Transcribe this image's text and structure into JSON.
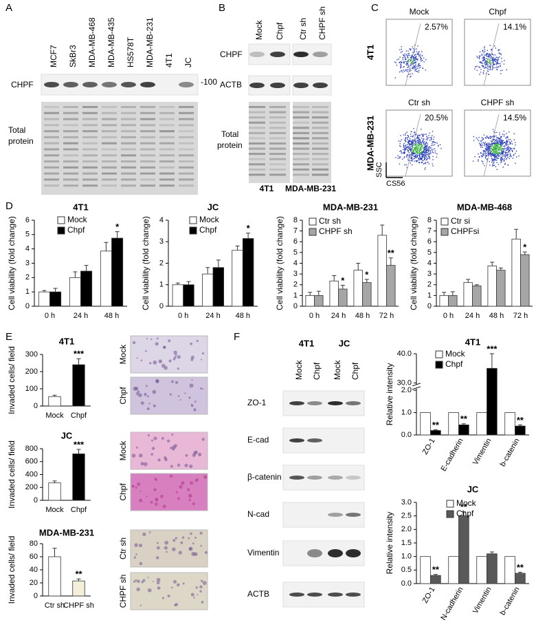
{
  "panels": [
    "A",
    "B",
    "C",
    "D",
    "E",
    "F"
  ],
  "panel_a": {
    "lanes": [
      "MCF7",
      "SkBr3",
      "MDA-MB-468",
      "MDA-MB-435",
      "HS578T",
      "MDA-MB-231",
      "4T1",
      "JC"
    ],
    "protein": "CHPF",
    "marker": "-100",
    "total": [
      "Total",
      "protein"
    ]
  },
  "panel_b": {
    "lanes": [
      "Mock",
      "Chpf",
      "Ctr sh",
      "CHPF sh"
    ],
    "rows": [
      "CHPF",
      "ACTB"
    ],
    "total": [
      "Total",
      "protein"
    ],
    "cells": [
      "4T1",
      "MDA-MB-231"
    ]
  },
  "panel_c": {
    "plots": [
      {
        "title": "Mock",
        "pct": "2.57%"
      },
      {
        "title": "Chpf",
        "pct": "14.1%"
      },
      {
        "title": "Ctr sh",
        "pct": "20.5%"
      },
      {
        "title": "CHPF sh",
        "pct": "14.5%"
      }
    ],
    "rows": [
      "4T1",
      "MDA-MB-231"
    ],
    "axes": [
      "SSC",
      "CS56"
    ]
  },
  "panel_e": {
    "images": [
      "Mock",
      "Chpf",
      "Mock",
      "Chpf",
      "Ctr sh",
      "CHPF sh"
    ]
  },
  "panel_f": {
    "cells": [
      "4T1",
      "JC"
    ],
    "lanes": [
      "Mock",
      "Chpf",
      "Mock",
      "Chpf"
    ],
    "rows": [
      "ZO-1",
      "E-cad",
      "β-catenin",
      "N-cad",
      "Vimentin",
      "ACTB"
    ]
  },
  "chart_data": [
    {
      "type": "bar",
      "title": "4T1",
      "y_label": "Cell viability (fold change)",
      "categories": [
        "0 h",
        "24 h",
        "48 h"
      ],
      "ylim": [
        0,
        6
      ],
      "yticks": [
        0,
        1,
        2,
        3,
        4,
        5,
        6
      ],
      "series": [
        {
          "name": "Mock",
          "color": "#ffffff",
          "values": [
            1.0,
            2.0,
            3.85
          ],
          "errors": [
            0.1,
            0.4,
            0.6
          ],
          "significance": [
            null,
            null,
            null
          ]
        },
        {
          "name": "Chpf",
          "color": "#000000",
          "values": [
            1.0,
            2.45,
            4.75
          ],
          "errors": [
            0.25,
            0.4,
            0.45
          ],
          "significance": [
            null,
            null,
            "*"
          ]
        }
      ]
    },
    {
      "type": "bar",
      "title": "JC",
      "y_label": "Cell viability (fold change)",
      "categories": [
        "0 h",
        "24 h",
        "48 h"
      ],
      "ylim": [
        0,
        4
      ],
      "yticks": [
        0,
        1,
        2,
        3,
        4
      ],
      "series": [
        {
          "name": "Mock",
          "color": "#ffffff",
          "values": [
            1.0,
            1.5,
            2.6
          ],
          "errors": [
            0.08,
            0.3,
            0.2
          ],
          "significance": [
            null,
            null,
            null
          ]
        },
        {
          "name": "Chpf",
          "color": "#000000",
          "values": [
            1.0,
            1.8,
            3.15
          ],
          "errors": [
            0.15,
            0.35,
            0.25
          ],
          "significance": [
            null,
            null,
            "*"
          ]
        }
      ]
    },
    {
      "type": "bar",
      "title": "MDA-MB-231",
      "y_label": "Cell viability (fold change)",
      "categories": [
        "0 h",
        "24 h",
        "48 h",
        "72 h"
      ],
      "ylim": [
        0,
        8
      ],
      "yticks": [
        0,
        1,
        2,
        3,
        4,
        5,
        6,
        7,
        8
      ],
      "series": [
        {
          "name": "Ctr sh",
          "color": "#ffffff",
          "values": [
            1.0,
            2.35,
            3.35,
            6.6
          ],
          "errors": [
            0.3,
            0.5,
            0.65,
            0.95
          ],
          "significance": [
            null,
            null,
            null,
            null
          ]
        },
        {
          "name": "CHPF sh",
          "color": "#a6a6a6",
          "values": [
            1.0,
            1.6,
            2.2,
            3.8
          ],
          "errors": [
            0.4,
            0.35,
            0.3,
            0.7
          ],
          "significance": [
            null,
            "*",
            "*",
            "**"
          ]
        }
      ]
    },
    {
      "type": "bar",
      "title": "MDA-MB-468",
      "y_label": "Cell viability (fold change)",
      "categories": [
        "0 h",
        "24 h",
        "48 h",
        "72 h"
      ],
      "ylim": [
        0,
        8
      ],
      "yticks": [
        0,
        1,
        2,
        3,
        4,
        5,
        6,
        7,
        8
      ],
      "series": [
        {
          "name": "Ctr si",
          "color": "#ffffff",
          "values": [
            1.0,
            2.2,
            3.75,
            6.25
          ],
          "errors": [
            0.3,
            0.3,
            0.35,
            0.9
          ],
          "significance": [
            null,
            null,
            null,
            null
          ]
        },
        {
          "name": "CHPFsi",
          "color": "#a6a6a6",
          "values": [
            1.0,
            1.9,
            3.35,
            4.8
          ],
          "errors": [
            0.35,
            0.1,
            0.2,
            0.25
          ],
          "significance": [
            null,
            null,
            null,
            "*"
          ]
        }
      ]
    },
    {
      "type": "bar",
      "title": "4T1",
      "y_label": "Invaded cells/ field",
      "categories": [
        "Mock",
        "Chpf"
      ],
      "ylim": [
        0,
        300
      ],
      "yticks": [
        0,
        100,
        200,
        300
      ],
      "series": [
        {
          "colors": [
            "#ffffff",
            "#000000"
          ],
          "values": [
            55,
            240
          ],
          "errors": [
            8,
            35
          ],
          "significance": [
            null,
            "***"
          ]
        }
      ]
    },
    {
      "type": "bar",
      "title": "JC",
      "y_label": "Invaded cells/ field",
      "categories": [
        "Mock",
        "Chpf"
      ],
      "ylim": [
        0,
        800
      ],
      "yticks": [
        0,
        200,
        400,
        600,
        800
      ],
      "series": [
        {
          "colors": [
            "#ffffff",
            "#000000"
          ],
          "values": [
            270,
            720
          ],
          "errors": [
            30,
            70
          ],
          "significance": [
            null,
            "***"
          ]
        }
      ]
    },
    {
      "type": "bar",
      "title": "MDA-MB-231",
      "y_label": "Invaded cells/ field",
      "categories": [
        "Ctr sh",
        "CHPF sh"
      ],
      "ylim": [
        0,
        80
      ],
      "yticks": [
        0,
        20,
        40,
        60,
        80
      ],
      "series": [
        {
          "colors": [
            "#ffffff",
            "#f3efd8"
          ],
          "values": [
            60,
            23
          ],
          "errors": [
            13,
            3
          ],
          "significance": [
            null,
            "**"
          ]
        }
      ]
    },
    {
      "type": "bar",
      "title": "4T1",
      "y_label": "Relative intensity",
      "categories": [
        "ZO-1",
        "E-cadherin",
        "Vimentin",
        "b-catenin"
      ],
      "ylim": [
        0,
        40
      ],
      "ybreak": [
        2,
        30
      ],
      "yticks": [
        {
          "value": 0,
          "label": "0.0"
        },
        {
          "value": 1,
          "label": "1.0"
        },
        {
          "value": 2,
          "label": "2.0"
        },
        {
          "value": 30,
          "label": "30.0"
        },
        {
          "value": 40,
          "label": "40.0"
        }
      ],
      "series": [
        {
          "name": "Mock",
          "color": "#ffffff",
          "values": [
            1,
            1,
            1,
            1
          ],
          "significance": [
            null,
            null,
            null,
            null
          ]
        },
        {
          "name": "Chpf",
          "color": "#000000",
          "values": [
            0.2,
            0.45,
            35,
            0.4
          ],
          "errors": [
            0.03,
            0.05,
            5,
            0.05
          ],
          "significance": [
            "**",
            "**",
            "***",
            "**"
          ]
        }
      ]
    },
    {
      "type": "bar",
      "title": "JC",
      "y_label": "Relative intensity",
      "categories": [
        "ZO-1",
        "N-cadherin",
        "Vimentin",
        "b-catenin"
      ],
      "ylim": [
        0,
        3
      ],
      "yticks": [
        {
          "value": 0,
          "label": "0.0"
        },
        {
          "value": 0.5,
          "label": "0.5"
        },
        {
          "value": 1,
          "label": "1.0"
        },
        {
          "value": 1.5,
          "label": "1.5"
        },
        {
          "value": 2,
          "label": "2.0"
        },
        {
          "value": 2.5,
          "label": "2.5"
        },
        {
          "value": 3,
          "label": "3.0"
        }
      ],
      "series": [
        {
          "name": "Mock",
          "color": "#ffffff",
          "values": [
            1,
            1,
            1,
            1
          ],
          "significance": [
            null,
            null,
            null,
            null
          ]
        },
        {
          "name": "Chpf",
          "color": "#595959",
          "values": [
            0.3,
            2.5,
            1.1,
            0.38
          ],
          "errors": [
            0.04,
            0.15,
            0.07,
            0.04
          ],
          "significance": [
            "**",
            "**",
            null,
            "**"
          ]
        }
      ]
    }
  ]
}
